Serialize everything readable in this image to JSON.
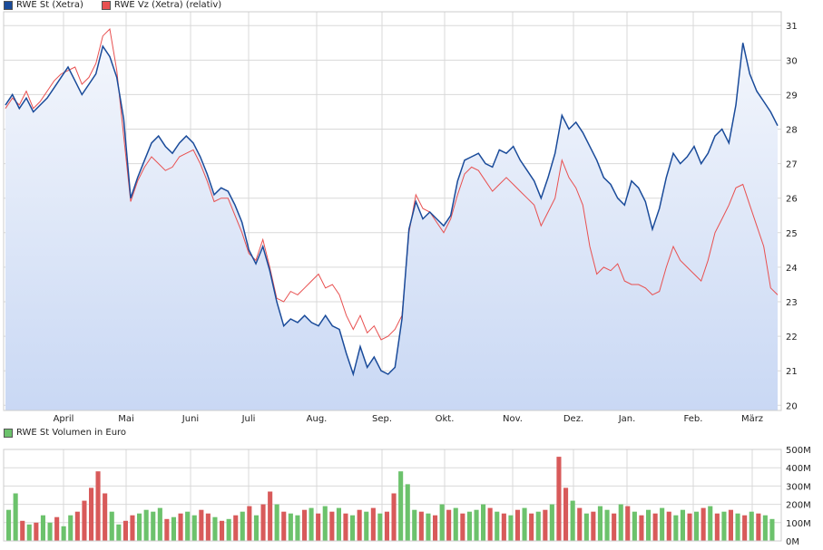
{
  "legend": {
    "series1_label": "RWE St (Xetra)",
    "series2_label": "RWE Vz (Xetra) (relativ)",
    "volume_label": "RWE St Volumen in Euro"
  },
  "colors": {
    "st_line": "#1a4b9a",
    "vz_line": "#e85050",
    "area_top": "#f3f6fc",
    "area_bottom": "#c9d8f4",
    "grid": "#d9d9d9",
    "vol_up": "#6cc26c",
    "vol_down": "#d85a5a"
  },
  "chart_data": [
    {
      "type": "line",
      "title": "",
      "x_labels": [
        "April",
        "Mai",
        "Juni",
        "Juli",
        "Aug.",
        "Sep.",
        "Okt.",
        "Nov.",
        "Dez.",
        "Jan.",
        "Feb.",
        "März"
      ],
      "ylim": [
        19.85,
        31.4
      ],
      "y_ticks": [
        20,
        21,
        22,
        23,
        24,
        25,
        26,
        27,
        28,
        29,
        30,
        31
      ],
      "grid": true,
      "legend_position": "top-left",
      "series": [
        {
          "name": "RWE St (Xetra)",
          "values": [
            28.7,
            29.0,
            28.6,
            28.9,
            28.5,
            28.7,
            28.9,
            29.2,
            29.5,
            29.8,
            29.4,
            29.0,
            29.3,
            29.6,
            30.4,
            30.1,
            29.5,
            28.3,
            26.0,
            26.6,
            27.1,
            27.6,
            27.8,
            27.5,
            27.3,
            27.6,
            27.8,
            27.6,
            27.2,
            26.7,
            26.1,
            26.3,
            26.2,
            25.8,
            25.3,
            24.5,
            24.1,
            24.6,
            23.9,
            23.0,
            22.3,
            22.5,
            22.4,
            22.6,
            22.4,
            22.3,
            22.6,
            22.3,
            22.2,
            21.5,
            20.9,
            21.7,
            21.1,
            21.4,
            21.0,
            20.9,
            21.1,
            22.5,
            25.1,
            25.9,
            25.4,
            25.6,
            25.4,
            25.2,
            25.5,
            26.5,
            27.1,
            27.2,
            27.3,
            27.0,
            26.9,
            27.4,
            27.3,
            27.5,
            27.1,
            26.8,
            26.5,
            26.0,
            26.6,
            27.3,
            28.4,
            28.0,
            28.2,
            27.9,
            27.5,
            27.1,
            26.6,
            26.4,
            26.0,
            25.8,
            26.5,
            26.3,
            25.9,
            25.1,
            25.7,
            26.6,
            27.3,
            27.0,
            27.2,
            27.5,
            27.0,
            27.3,
            27.8,
            28.0,
            27.6,
            28.7,
            30.5,
            29.6,
            29.1,
            28.8,
            28.5,
            28.1
          ]
        },
        {
          "name": "RWE Vz (Xetra) (relativ)",
          "values": [
            28.6,
            28.9,
            28.7,
            29.1,
            28.6,
            28.8,
            29.1,
            29.4,
            29.6,
            29.7,
            29.8,
            29.3,
            29.5,
            29.9,
            30.7,
            30.9,
            29.7,
            27.8,
            25.9,
            26.5,
            26.9,
            27.2,
            27.0,
            26.8,
            26.9,
            27.2,
            27.3,
            27.4,
            27.0,
            26.5,
            25.9,
            26.0,
            26.0,
            25.5,
            25.0,
            24.4,
            24.2,
            24.8,
            24.0,
            23.1,
            23.0,
            23.3,
            23.2,
            23.4,
            23.6,
            23.8,
            23.4,
            23.5,
            23.2,
            22.6,
            22.2,
            22.6,
            22.1,
            22.3,
            21.9,
            22.0,
            22.2,
            22.6,
            25.0,
            26.1,
            25.7,
            25.6,
            25.3,
            25.0,
            25.4,
            26.1,
            26.7,
            26.9,
            26.8,
            26.5,
            26.2,
            26.4,
            26.6,
            26.4,
            26.2,
            26.0,
            25.8,
            25.2,
            25.6,
            26.0,
            27.1,
            26.6,
            26.3,
            25.8,
            24.6,
            23.8,
            24.0,
            23.9,
            24.1,
            23.6,
            23.5,
            23.5,
            23.4,
            23.2,
            23.3,
            24.0,
            24.6,
            24.2,
            24.0,
            23.8,
            23.6,
            24.2,
            25.0,
            25.4,
            25.8,
            26.3,
            26.4,
            25.8,
            25.2,
            24.6,
            23.4,
            23.2
          ]
        }
      ]
    },
    {
      "type": "bar",
      "title": "",
      "x_labels": [
        "April",
        "Mai",
        "Juni",
        "Juli",
        "Aug.",
        "Sep.",
        "Okt.",
        "Nov.",
        "Dez.",
        "Jan.",
        "Feb.",
        "März"
      ],
      "ylim": [
        0,
        500
      ],
      "y_ticks": [
        "0M",
        "100M",
        "200M",
        "300M",
        "400M",
        "500M"
      ],
      "grid": true,
      "series": [
        {
          "name": "RWE St Volumen in Euro",
          "values": [
            170,
            260,
            110,
            90,
            100,
            140,
            100,
            130,
            80,
            140,
            160,
            220,
            290,
            380,
            260,
            160,
            90,
            110,
            140,
            150,
            170,
            160,
            180,
            120,
            130,
            150,
            160,
            140,
            170,
            150,
            130,
            110,
            120,
            140,
            160,
            190,
            140,
            200,
            270,
            200,
            160,
            150,
            140,
            170,
            180,
            150,
            190,
            160,
            180,
            150,
            140,
            170,
            160,
            180,
            150,
            160,
            260,
            380,
            310,
            170,
            160,
            150,
            140,
            200,
            170,
            180,
            150,
            160,
            170,
            200,
            180,
            160,
            150,
            140,
            170,
            180,
            150,
            160,
            170,
            200,
            460,
            290,
            220,
            180,
            150,
            160,
            190,
            170,
            150,
            200,
            190,
            160,
            140,
            170,
            150,
            180,
            160,
            140,
            170,
            150,
            160,
            180,
            190,
            150,
            160,
            170,
            150,
            140,
            160,
            150,
            140,
            120
          ],
          "direction": [
            "up",
            "up",
            "down",
            "up",
            "down",
            "up",
            "up",
            "down",
            "up",
            "up",
            "down",
            "down",
            "down",
            "down",
            "down",
            "up",
            "up",
            "down",
            "down",
            "up",
            "up",
            "up",
            "up",
            "down",
            "up",
            "down",
            "up",
            "up",
            "down",
            "down",
            "up",
            "down",
            "up",
            "down",
            "up",
            "down",
            "up",
            "down",
            "down",
            "up",
            "down",
            "up",
            "up",
            "down",
            "up",
            "down",
            "up",
            "down",
            "up",
            "down",
            "up",
            "down",
            "up",
            "down",
            "up",
            "down",
            "down",
            "up",
            "up",
            "up",
            "down",
            "up",
            "down",
            "up",
            "down",
            "up",
            "down",
            "up",
            "up",
            "up",
            "down",
            "up",
            "down",
            "up",
            "down",
            "up",
            "down",
            "up",
            "down",
            "up",
            "down",
            "down",
            "up",
            "down",
            "up",
            "down",
            "up",
            "up",
            "down",
            "up",
            "down",
            "up",
            "down",
            "up",
            "down",
            "up",
            "down",
            "up",
            "up",
            "down",
            "up",
            "down",
            "up",
            "down",
            "up",
            "down",
            "up",
            "down",
            "up",
            "down",
            "up",
            "up"
          ]
        }
      ]
    }
  ]
}
